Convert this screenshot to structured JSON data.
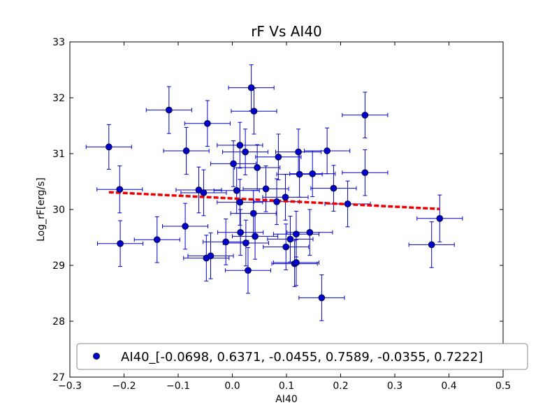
{
  "chart_data": {
    "type": "scatter",
    "title": "rF Vs AI40",
    "xlabel": "AI40",
    "ylabel": "Log_rF[erg/s]",
    "xlim": [
      -0.3,
      0.5
    ],
    "ylim": [
      27,
      33
    ],
    "xticks": [
      -0.3,
      -0.2,
      -0.1,
      0.0,
      0.1,
      0.2,
      0.3,
      0.4,
      0.5
    ],
    "xtick_labels": [
      "−0.3",
      "−0.2",
      "−0.1",
      "0.0",
      "0.1",
      "0.2",
      "0.3",
      "0.4",
      "0.5"
    ],
    "yticks": [
      27,
      28,
      29,
      30,
      31,
      32,
      33
    ],
    "ytick_labels": [
      "27",
      "28",
      "29",
      "30",
      "31",
      "32",
      "33"
    ],
    "grid": false,
    "legend_position": "bottom-center",
    "colors": {
      "points": "#0000cc",
      "errorbars": "#0000cc",
      "fit": "#ee0000"
    },
    "series": [
      {
        "name": "AI40_[-0.0698, 0.6371, -0.0455, 0.7589, -0.0355, 0.7222]",
        "points": [
          {
            "x": -0.228,
            "y": 31.12,
            "xerr": 0.042,
            "yerr": 0.4
          },
          {
            "x": -0.208,
            "y": 30.36,
            "xerr": 0.042,
            "yerr": 0.42
          },
          {
            "x": -0.207,
            "y": 29.39,
            "xerr": 0.042,
            "yerr": 0.41
          },
          {
            "x": -0.139,
            "y": 29.46,
            "xerr": 0.042,
            "yerr": 0.41
          },
          {
            "x": -0.117,
            "y": 31.78,
            "xerr": 0.042,
            "yerr": 0.42
          },
          {
            "x": -0.085,
            "y": 31.05,
            "xerr": 0.042,
            "yerr": 0.42
          },
          {
            "x": -0.087,
            "y": 29.7,
            "xerr": 0.042,
            "yerr": 0.41
          },
          {
            "x": -0.062,
            "y": 30.35,
            "xerr": 0.042,
            "yerr": 0.41
          },
          {
            "x": -0.053,
            "y": 30.3,
            "xerr": 0.042,
            "yerr": 0.41
          },
          {
            "x": -0.046,
            "y": 31.54,
            "xerr": 0.042,
            "yerr": 0.41
          },
          {
            "x": -0.048,
            "y": 29.13,
            "xerr": 0.042,
            "yerr": 0.41
          },
          {
            "x": -0.04,
            "y": 29.17,
            "xerr": 0.042,
            "yerr": 0.41
          },
          {
            "x": -0.012,
            "y": 29.42,
            "xerr": 0.042,
            "yerr": 0.41
          },
          {
            "x": 0.002,
            "y": 30.82,
            "xerr": 0.042,
            "yerr": 0.41
          },
          {
            "x": 0.008,
            "y": 30.34,
            "xerr": 0.042,
            "yerr": 0.41
          },
          {
            "x": 0.014,
            "y": 31.15,
            "xerr": 0.042,
            "yerr": 0.41
          },
          {
            "x": 0.014,
            "y": 30.13,
            "xerr": 0.042,
            "yerr": 0.41
          },
          {
            "x": 0.015,
            "y": 29.59,
            "xerr": 0.042,
            "yerr": 0.41
          },
          {
            "x": 0.024,
            "y": 31.03,
            "xerr": 0.042,
            "yerr": 0.41
          },
          {
            "x": 0.025,
            "y": 29.4,
            "xerr": 0.042,
            "yerr": 0.41
          },
          {
            "x": 0.029,
            "y": 28.91,
            "xerr": 0.042,
            "yerr": 0.41
          },
          {
            "x": 0.035,
            "y": 32.18,
            "xerr": 0.042,
            "yerr": 0.41
          },
          {
            "x": 0.04,
            "y": 31.76,
            "xerr": 0.042,
            "yerr": 0.41
          },
          {
            "x": 0.039,
            "y": 29.93,
            "xerr": 0.042,
            "yerr": 0.41
          },
          {
            "x": 0.042,
            "y": 29.52,
            "xerr": 0.042,
            "yerr": 0.41
          },
          {
            "x": 0.046,
            "y": 30.75,
            "xerr": 0.042,
            "yerr": 0.41
          },
          {
            "x": 0.062,
            "y": 30.37,
            "xerr": 0.042,
            "yerr": 0.41
          },
          {
            "x": 0.082,
            "y": 30.14,
            "xerr": 0.042,
            "yerr": 0.41
          },
          {
            "x": 0.085,
            "y": 30.94,
            "xerr": 0.042,
            "yerr": 0.41
          },
          {
            "x": 0.098,
            "y": 30.22,
            "xerr": 0.042,
            "yerr": 0.41
          },
          {
            "x": 0.099,
            "y": 29.33,
            "xerr": 0.042,
            "yerr": 0.41
          },
          {
            "x": 0.107,
            "y": 29.47,
            "xerr": 0.042,
            "yerr": 0.41
          },
          {
            "x": 0.115,
            "y": 29.03,
            "xerr": 0.042,
            "yerr": 0.41
          },
          {
            "x": 0.118,
            "y": 29.05,
            "xerr": 0.042,
            "yerr": 0.41
          },
          {
            "x": 0.118,
            "y": 29.56,
            "xerr": 0.042,
            "yerr": 0.41
          },
          {
            "x": 0.122,
            "y": 31.03,
            "xerr": 0.042,
            "yerr": 0.41
          },
          {
            "x": 0.124,
            "y": 30.63,
            "xerr": 0.042,
            "yerr": 0.41
          },
          {
            "x": 0.143,
            "y": 29.59,
            "xerr": 0.042,
            "yerr": 0.41
          },
          {
            "x": 0.148,
            "y": 30.64,
            "xerr": 0.042,
            "yerr": 0.41
          },
          {
            "x": 0.165,
            "y": 28.42,
            "xerr": 0.042,
            "yerr": 0.41
          },
          {
            "x": 0.175,
            "y": 31.05,
            "xerr": 0.042,
            "yerr": 0.41
          },
          {
            "x": 0.187,
            "y": 30.38,
            "xerr": 0.042,
            "yerr": 0.41
          },
          {
            "x": 0.213,
            "y": 30.1,
            "xerr": 0.042,
            "yerr": 0.41
          },
          {
            "x": 0.245,
            "y": 31.69,
            "xerr": 0.042,
            "yerr": 0.41
          },
          {
            "x": 0.245,
            "y": 30.66,
            "xerr": 0.042,
            "yerr": 0.41
          },
          {
            "x": 0.368,
            "y": 29.37,
            "xerr": 0.042,
            "yerr": 0.41
          },
          {
            "x": 0.383,
            "y": 29.84,
            "xerr": 0.042,
            "yerr": 0.42
          }
        ]
      }
    ],
    "fit_line": {
      "x": [
        -0.228,
        0.383
      ],
      "y": [
        30.31,
        30.01
      ],
      "style": "dashed"
    }
  }
}
